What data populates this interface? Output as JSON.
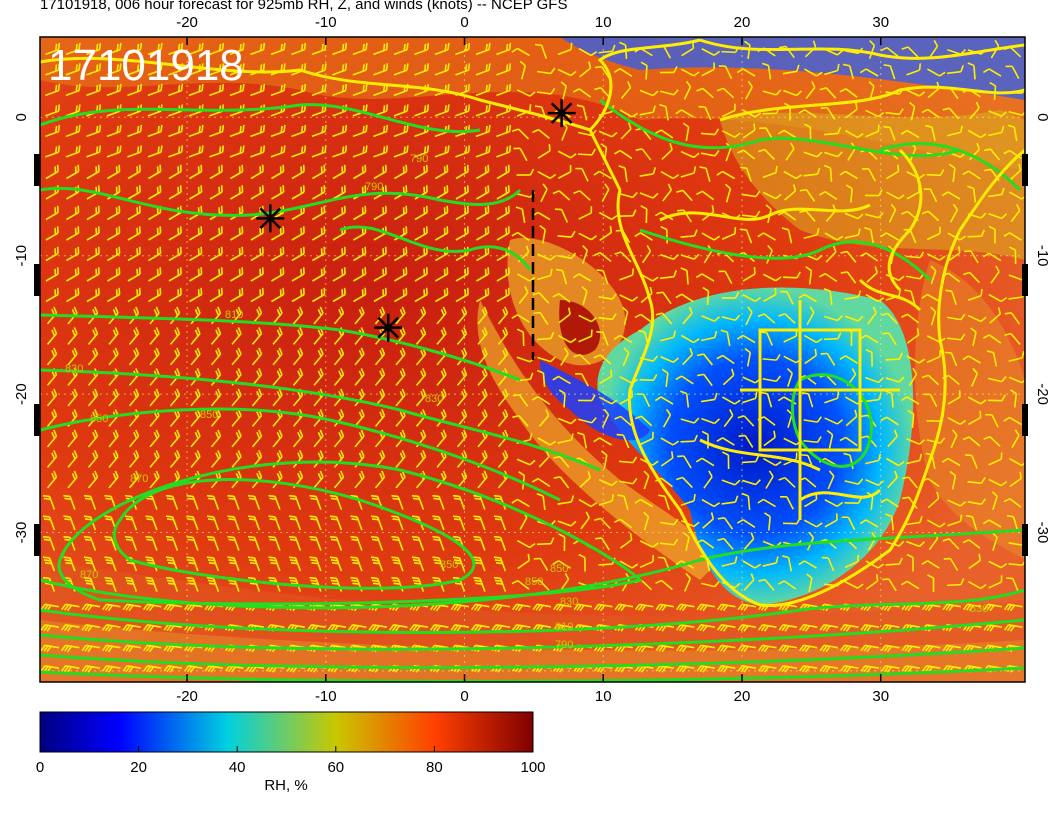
{
  "title": "17101918, 006 hour forecast for 925mb RH, Z, and winds (knots) -- NCEP GFS",
  "stamp": "17101918",
  "map": {
    "lon_range": [
      -30.6,
      40.4
    ],
    "lat_range": [
      -40.8,
      5.8
    ],
    "x_ticks": [
      "-20",
      "-10",
      "0",
      "10",
      "20",
      "30"
    ],
    "y_ticks": [
      "0",
      "-10",
      "-20",
      "-30"
    ]
  },
  "contour_labels": [
    "790",
    "790",
    "810",
    "830",
    "850",
    "850",
    "870",
    "830",
    "870",
    "850",
    "850",
    "830",
    "810",
    "790",
    "850",
    "830"
  ],
  "markers": [
    {
      "name": "star-marker-1",
      "lon": -14,
      "lat": -7.3
    },
    {
      "name": "star-marker-2",
      "lon": -5.5,
      "lat": -15.2
    },
    {
      "name": "star-marker-3",
      "lon": 7,
      "lat": 0.3
    }
  ],
  "colorbar": {
    "label": "RH, %",
    "ticks": [
      "0",
      "20",
      "40",
      "60",
      "80",
      "100"
    ],
    "colors": [
      "#000080",
      "#0000ff",
      "#00c8ff",
      "#c8c800",
      "#ff4000",
      "#800000"
    ]
  },
  "colors": {
    "contour": "#22dd22",
    "coast": "#ffee00",
    "barb": "#ffee00"
  }
}
